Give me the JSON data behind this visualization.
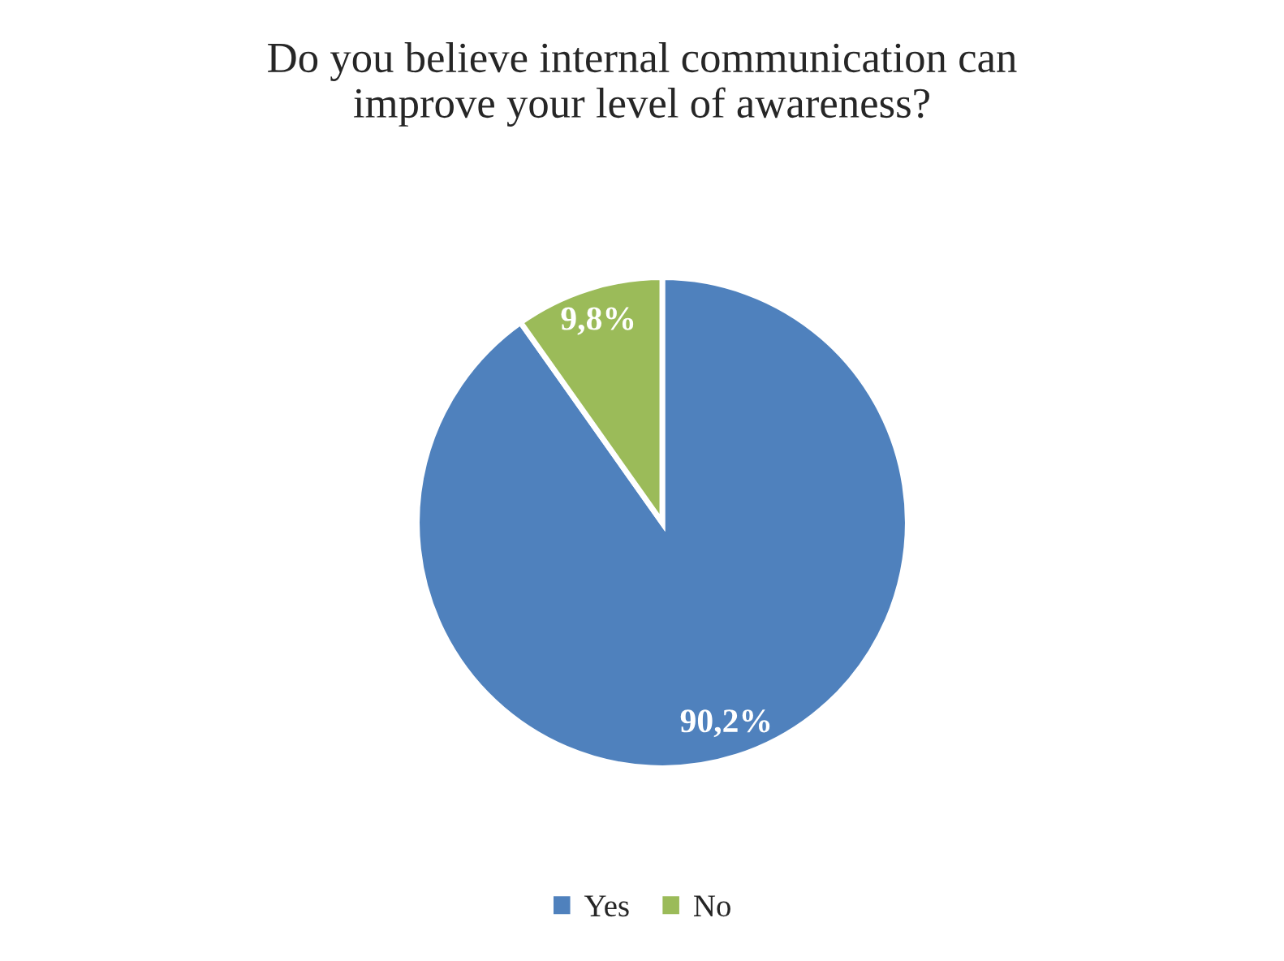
{
  "chart_data": {
    "type": "pie",
    "title": "Do you believe internal communication can\nimprove your level of awareness?",
    "categories": [
      "Yes",
      "No"
    ],
    "values": [
      90.2,
      9.8
    ],
    "colors": [
      "#4f81bd",
      "#9bbb59"
    ],
    "value_labels": [
      "90,2%",
      "9,8%"
    ],
    "legend": "bottom"
  }
}
